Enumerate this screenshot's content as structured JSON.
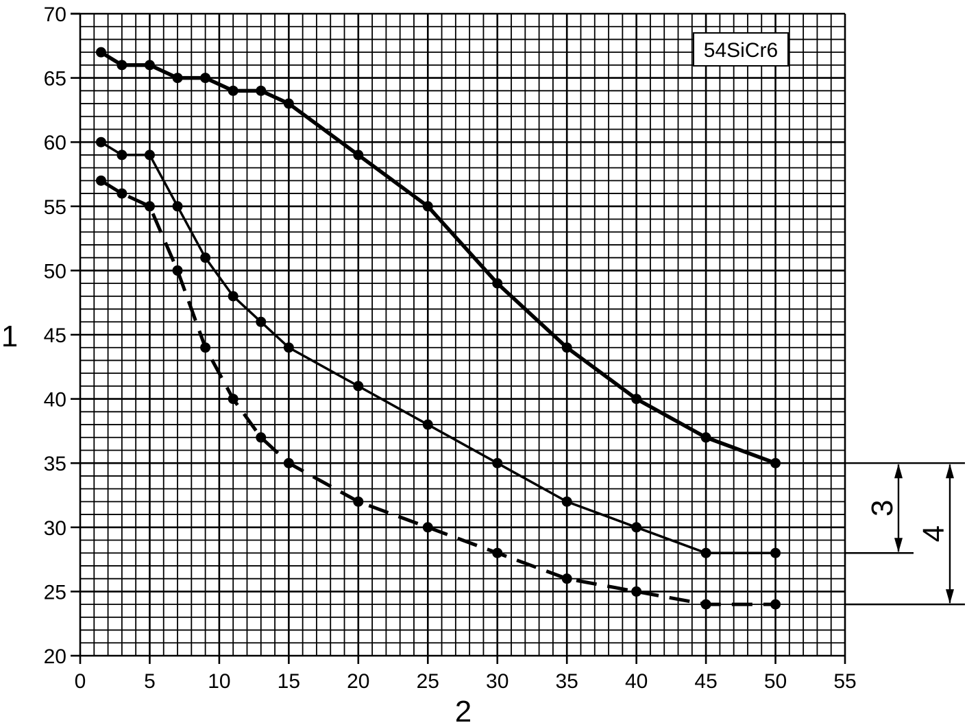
{
  "chart_data": {
    "type": "line",
    "title": "",
    "annotation_label": "54SiCr6",
    "xlabel": "2",
    "ylabel": "1",
    "xlim": [
      0,
      55
    ],
    "ylim": [
      20,
      70
    ],
    "x_ticks": [
      0,
      5,
      10,
      15,
      20,
      25,
      30,
      35,
      40,
      45,
      50,
      55
    ],
    "y_ticks": [
      20,
      25,
      30,
      35,
      40,
      45,
      50,
      55,
      60,
      65,
      70
    ],
    "grid": true,
    "series": [
      {
        "style": "thick-solid",
        "points": [
          [
            1.5,
            67
          ],
          [
            3,
            66
          ],
          [
            5,
            66
          ],
          [
            7,
            65
          ],
          [
            9,
            65
          ],
          [
            11,
            64
          ],
          [
            13,
            64
          ],
          [
            15,
            63
          ],
          [
            20,
            59
          ],
          [
            25,
            55
          ],
          [
            30,
            49
          ],
          [
            35,
            44
          ],
          [
            40,
            40
          ],
          [
            45,
            37
          ],
          [
            50,
            35
          ]
        ]
      },
      {
        "style": "solid",
        "points": [
          [
            1.5,
            60
          ],
          [
            3,
            59
          ],
          [
            5,
            59
          ],
          [
            7,
            55
          ],
          [
            9,
            51
          ],
          [
            11,
            48
          ],
          [
            13,
            46
          ],
          [
            15,
            44
          ],
          [
            20,
            41
          ],
          [
            25,
            38
          ],
          [
            30,
            35
          ],
          [
            35,
            32
          ],
          [
            40,
            30
          ],
          [
            45,
            28
          ],
          [
            50,
            28
          ]
        ]
      },
      {
        "style": "dashed",
        "points": [
          [
            1.5,
            57
          ],
          [
            3,
            56
          ],
          [
            5,
            55
          ],
          [
            7,
            50
          ],
          [
            9,
            44
          ],
          [
            11,
            40
          ],
          [
            13,
            37
          ],
          [
            15,
            35
          ],
          [
            20,
            32
          ],
          [
            25,
            30
          ],
          [
            30,
            28
          ],
          [
            35,
            26
          ],
          [
            40,
            25
          ],
          [
            45,
            24
          ],
          [
            50,
            24
          ]
        ]
      }
    ],
    "range_markers": [
      {
        "label": "3",
        "from": 35,
        "to": 28
      },
      {
        "label": "4",
        "from": 35,
        "to": 24
      }
    ]
  }
}
